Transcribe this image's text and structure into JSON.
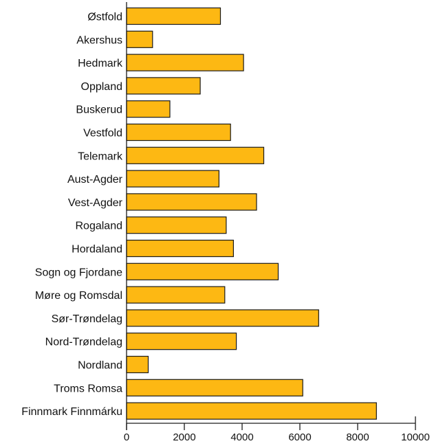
{
  "chart_data": {
    "type": "bar",
    "orientation": "horizontal",
    "title": "",
    "xlabel": "",
    "ylabel": "",
    "xlim": [
      0,
      10000
    ],
    "x_ticks": [
      0,
      2000,
      4000,
      6000,
      8000,
      10000
    ],
    "x_tick_labels": [
      "0",
      "2000",
      "4000",
      "6000",
      "8000",
      "10000"
    ],
    "grid": false,
    "legend": "none",
    "categories": [
      "Østfold",
      "Akershus",
      "Hedmark",
      "Oppland",
      "Buskerud",
      "Vestfold",
      "Telemark",
      "Aust-Agder",
      "Vest-Agder",
      "Rogaland",
      "Hordaland",
      "Sogn og Fjordane",
      "Møre og Romsdal",
      "Sør-Trøndelag",
      "Nord-Trøndelag",
      "Nordland",
      "Troms Romsa",
      "Finnmark Finnmárku"
    ],
    "values": [
      3250,
      900,
      4050,
      2550,
      1500,
      3600,
      4750,
      3200,
      4500,
      3450,
      3700,
      5250,
      3400,
      6650,
      3800,
      750,
      6100,
      8650
    ],
    "bar_color": "#FDB813",
    "bar_edge_color": "#1a1a1a"
  }
}
